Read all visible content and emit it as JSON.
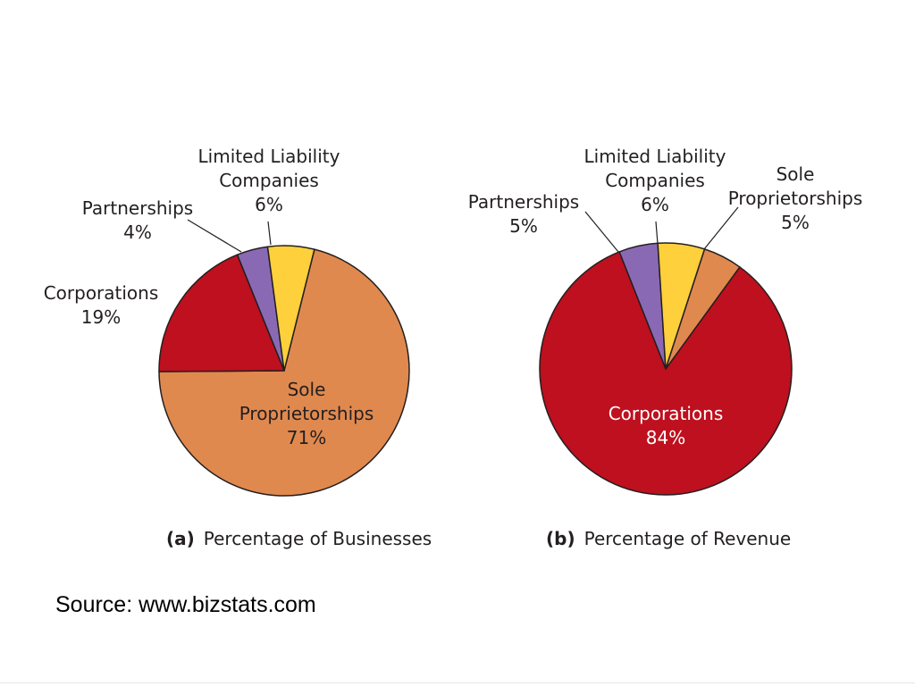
{
  "colors": {
    "sole_proprietorships": "#e0894f",
    "corporations": "#be101e",
    "partnerships": "#8a69b4",
    "limited_liability_companies": "#fdd03c",
    "outline": "#231f20"
  },
  "chart_data": [
    {
      "type": "pie",
      "caption_letter": "(a)",
      "caption_text": "Percentage of Businesses",
      "slices": [
        {
          "key": "sole_proprietorships",
          "label_lines": [
            "Sole",
            "Proprietorships"
          ],
          "value": 71,
          "value_label": "71%"
        },
        {
          "key": "corporations",
          "label_lines": [
            "Corporations"
          ],
          "value": 19,
          "value_label": "19%"
        },
        {
          "key": "partnerships",
          "label_lines": [
            "Partnerships"
          ],
          "value": 4,
          "value_label": "4%"
        },
        {
          "key": "limited_liability_companies",
          "label_lines": [
            "Limited Liability",
            "Companies"
          ],
          "value": 6,
          "value_label": "6%"
        }
      ]
    },
    {
      "type": "pie",
      "caption_letter": "(b)",
      "caption_text": "Percentage of Revenue",
      "slices": [
        {
          "key": "sole_proprietorships",
          "label_lines": [
            "Sole",
            "Proprietorships"
          ],
          "value": 5,
          "value_label": "5%"
        },
        {
          "key": "corporations",
          "label_lines": [
            "Corporations"
          ],
          "value": 84,
          "value_label": "84%"
        },
        {
          "key": "partnerships",
          "label_lines": [
            "Partnerships"
          ],
          "value": 5,
          "value_label": "5%"
        },
        {
          "key": "limited_liability_companies",
          "label_lines": [
            "Limited Liability",
            "Companies"
          ],
          "value": 6,
          "value_label": "6%"
        }
      ]
    }
  ],
  "source": "Source: www.bizstats.com"
}
